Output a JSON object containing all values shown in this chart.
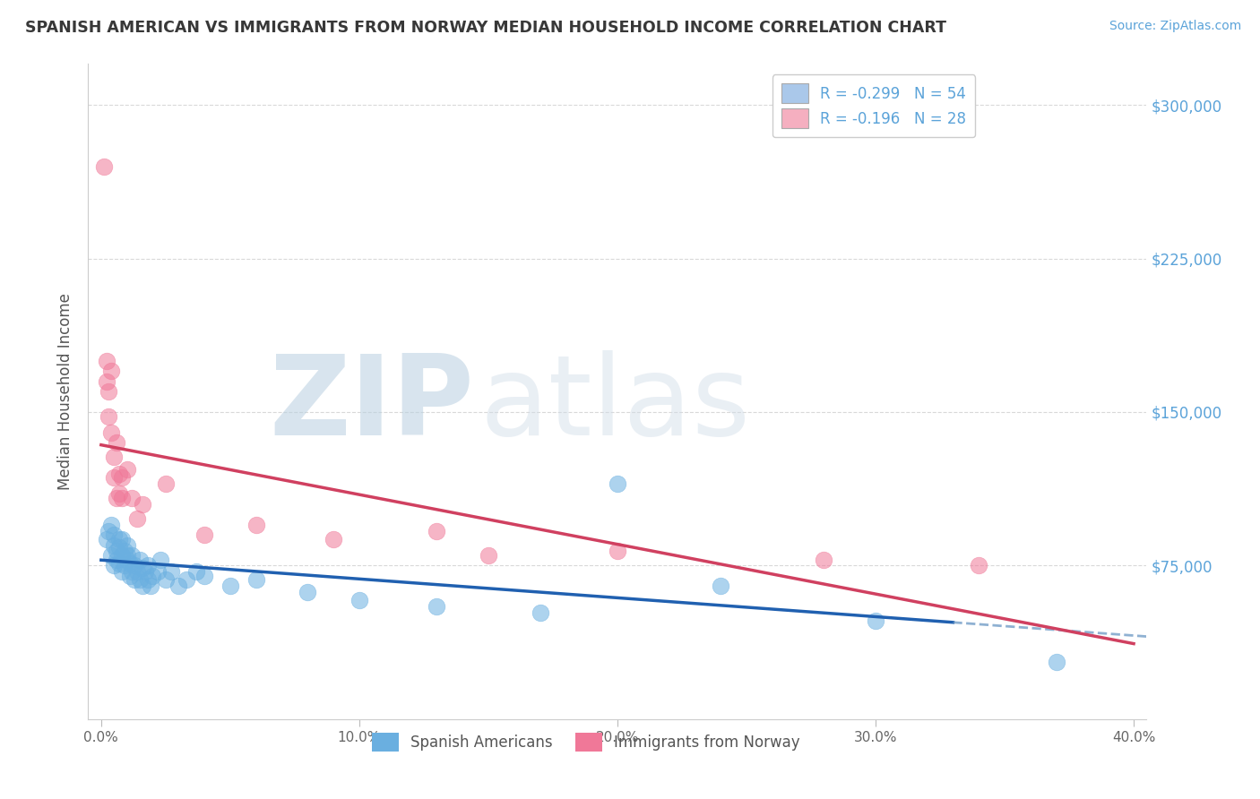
{
  "title": "SPANISH AMERICAN VS IMMIGRANTS FROM NORWAY MEDIAN HOUSEHOLD INCOME CORRELATION CHART",
  "source": "Source: ZipAtlas.com",
  "ylabel": "Median Household Income",
  "xlim": [
    -0.005,
    0.405
  ],
  "ylim": [
    0,
    320000
  ],
  "yticks": [
    0,
    75000,
    150000,
    225000,
    300000
  ],
  "ytick_labels": [
    "",
    "$75,000",
    "$150,000",
    "$225,000",
    "$300,000"
  ],
  "xtick_labels": [
    "0.0%",
    "10.0%",
    "20.0%",
    "30.0%",
    "40.0%"
  ],
  "xticks": [
    0.0,
    0.1,
    0.2,
    0.3,
    0.4
  ],
  "legend_entries": [
    {
      "label": "R = -0.299   N = 54",
      "facecolor": "#aac8ea"
    },
    {
      "label": "R = -0.196   N = 28",
      "facecolor": "#f5afc0"
    }
  ],
  "spanish_x": [
    0.002,
    0.003,
    0.004,
    0.004,
    0.005,
    0.005,
    0.005,
    0.006,
    0.006,
    0.007,
    0.007,
    0.007,
    0.008,
    0.008,
    0.008,
    0.009,
    0.009,
    0.01,
    0.01,
    0.01,
    0.011,
    0.011,
    0.012,
    0.012,
    0.013,
    0.013,
    0.014,
    0.015,
    0.015,
    0.016,
    0.016,
    0.017,
    0.018,
    0.018,
    0.019,
    0.02,
    0.022,
    0.023,
    0.025,
    0.027,
    0.03,
    0.033,
    0.037,
    0.04,
    0.05,
    0.06,
    0.08,
    0.1,
    0.13,
    0.17,
    0.2,
    0.24,
    0.3,
    0.37
  ],
  "spanish_y": [
    88000,
    92000,
    80000,
    95000,
    75000,
    85000,
    90000,
    78000,
    82000,
    88000,
    76000,
    84000,
    80000,
    72000,
    88000,
    75000,
    82000,
    78000,
    85000,
    80000,
    70000,
    76000,
    72000,
    80000,
    68000,
    75000,
    72000,
    78000,
    68000,
    65000,
    74000,
    72000,
    68000,
    75000,
    65000,
    70000,
    72000,
    78000,
    68000,
    72000,
    65000,
    68000,
    72000,
    70000,
    65000,
    68000,
    62000,
    58000,
    55000,
    52000,
    115000,
    65000,
    48000,
    28000
  ],
  "norway_x": [
    0.001,
    0.002,
    0.002,
    0.003,
    0.003,
    0.004,
    0.004,
    0.005,
    0.005,
    0.006,
    0.006,
    0.007,
    0.007,
    0.008,
    0.008,
    0.01,
    0.012,
    0.014,
    0.016,
    0.025,
    0.04,
    0.06,
    0.09,
    0.13,
    0.15,
    0.2,
    0.28,
    0.34
  ],
  "norway_y": [
    270000,
    175000,
    165000,
    160000,
    148000,
    170000,
    140000,
    128000,
    118000,
    135000,
    108000,
    120000,
    110000,
    118000,
    108000,
    122000,
    108000,
    98000,
    105000,
    115000,
    90000,
    95000,
    88000,
    92000,
    80000,
    82000,
    78000,
    75000
  ],
  "blue_color": "#6aafe0",
  "pink_color": "#f07898",
  "blue_line_color": "#2060b0",
  "pink_line_color": "#d04060",
  "blue_dash_color": "#6090c0",
  "watermark_text": "ZIPatlas",
  "grid_color": "#d0d0d0",
  "background_color": "#ffffff",
  "title_color": "#383838",
  "ytick_color": "#5ba3d9",
  "source_color": "#5ba3d9",
  "xtick_color": "#666666"
}
